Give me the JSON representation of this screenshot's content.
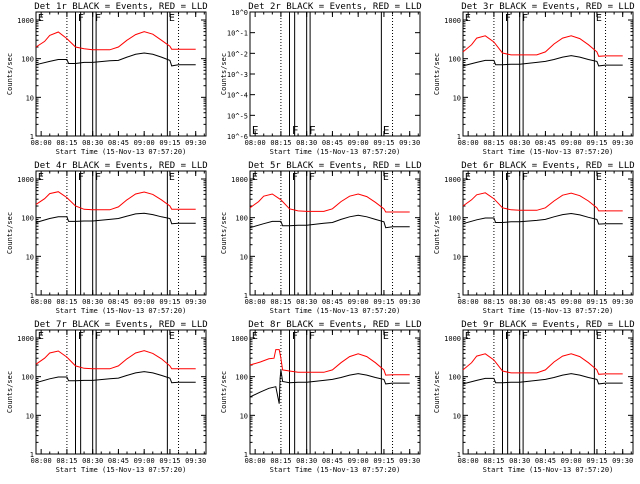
{
  "x_tick_labels": [
    "08:00",
    "08:15",
    "08:30",
    "08:45",
    "09:00",
    "09:15",
    "09:30"
  ],
  "y_tick_labels_log": [
    "1",
    "10",
    "100",
    "1000"
  ],
  "y_tick_labels_empty": [
    "10^-6",
    "10^-5",
    "10^-4",
    "10^-3",
    "10^-2",
    "10^-1",
    "10^0"
  ],
  "ylabel": "Counts/sec",
  "xlabel": "Start Time (15-Nov-13 07:57:20)",
  "colors": {
    "events": "#000000",
    "lld": "#ff0000"
  },
  "chart_data": [
    {
      "id": "det-1r",
      "title": "Det 1r BLACK = Events, RED = LLD",
      "type": "line",
      "empty": false,
      "ylim": [
        1,
        1000
      ],
      "markers": [
        "E",
        "F",
        "F",
        "E"
      ],
      "series": [
        {
          "name": "BLACK = Events",
          "x": [
            "07:57",
            "08:05",
            "08:10",
            "08:15",
            "08:16",
            "08:20",
            "08:25",
            "08:30",
            "08:40",
            "08:45",
            "08:50",
            "08:55",
            "09:00",
            "09:05",
            "09:10",
            "09:15",
            "09:16",
            "09:20",
            "09:25",
            "09:30"
          ],
          "values": [
            70,
            85,
            95,
            95,
            75,
            75,
            80,
            80,
            88,
            90,
            110,
            130,
            140,
            130,
            110,
            90,
            65,
            70,
            70,
            70
          ]
        },
        {
          "name": "RED = LLD",
          "x": [
            "07:57",
            "08:02",
            "08:05",
            "08:10",
            "08:15",
            "08:20",
            "08:25",
            "08:30",
            "08:40",
            "08:45",
            "08:50",
            "08:55",
            "09:00",
            "09:05",
            "09:10",
            "09:15",
            "09:16",
            "09:20",
            "09:25",
            "09:30"
          ],
          "values": [
            200,
            280,
            400,
            490,
            330,
            200,
            180,
            170,
            170,
            200,
            300,
            420,
            500,
            430,
            300,
            210,
            175,
            175,
            175,
            175
          ]
        }
      ]
    },
    {
      "id": "det-2r",
      "title": "Det 2r BLACK = Events, RED = LLD",
      "type": "line",
      "empty": true,
      "markers": [
        "E",
        "F",
        "F",
        "E"
      ],
      "series": []
    },
    {
      "id": "det-3r",
      "title": "Det 3r BLACK = Events, RED = LLD",
      "type": "line",
      "empty": false,
      "ylim": [
        1,
        1000
      ],
      "markers": [
        "E",
        "F",
        "F",
        "E"
      ],
      "series": [
        {
          "name": "BLACK = Events",
          "x": [
            "07:57",
            "08:05",
            "08:10",
            "08:15",
            "08:16",
            "08:20",
            "08:25",
            "08:30",
            "08:40",
            "08:45",
            "08:50",
            "08:55",
            "09:00",
            "09:05",
            "09:10",
            "09:15",
            "09:16",
            "09:20",
            "09:25",
            "09:30"
          ],
          "values": [
            65,
            80,
            90,
            90,
            70,
            70,
            72,
            72,
            80,
            85,
            95,
            110,
            120,
            110,
            95,
            85,
            65,
            68,
            68,
            68
          ]
        },
        {
          "name": "RED = LLD",
          "x": [
            "07:57",
            "08:02",
            "08:05",
            "08:10",
            "08:15",
            "08:20",
            "08:25",
            "08:30",
            "08:40",
            "08:45",
            "08:50",
            "08:55",
            "09:00",
            "09:05",
            "09:10",
            "09:15",
            "09:16",
            "09:20",
            "09:25",
            "09:30"
          ],
          "values": [
            150,
            230,
            340,
            390,
            270,
            140,
            125,
            125,
            125,
            150,
            240,
            340,
            390,
            330,
            230,
            150,
            115,
            118,
            118,
            118
          ]
        }
      ]
    },
    {
      "id": "det-4r",
      "title": "Det 4r BLACK = Events, RED = LLD",
      "type": "line",
      "empty": false,
      "ylim": [
        1,
        1000
      ],
      "markers": [
        "E",
        "F",
        "F",
        "E"
      ],
      "series": [
        {
          "name": "BLACK = Events",
          "x": [
            "07:57",
            "08:05",
            "08:10",
            "08:15",
            "08:16",
            "08:20",
            "08:25",
            "08:30",
            "08:40",
            "08:45",
            "08:50",
            "08:55",
            "09:00",
            "09:05",
            "09:10",
            "09:15",
            "09:16",
            "09:20",
            "09:25",
            "09:30"
          ],
          "values": [
            75,
            95,
            105,
            105,
            80,
            80,
            82,
            82,
            90,
            95,
            110,
            125,
            130,
            120,
            105,
            95,
            70,
            72,
            72,
            72
          ]
        },
        {
          "name": "RED = LLD",
          "x": [
            "07:57",
            "08:02",
            "08:05",
            "08:10",
            "08:15",
            "08:20",
            "08:25",
            "08:30",
            "08:40",
            "08:45",
            "08:50",
            "08:55",
            "09:00",
            "09:05",
            "09:10",
            "09:15",
            "09:16",
            "09:20",
            "09:25",
            "09:30"
          ],
          "values": [
            220,
            310,
            420,
            470,
            330,
            200,
            165,
            160,
            160,
            190,
            290,
            410,
            460,
            400,
            290,
            200,
            165,
            165,
            165,
            165
          ]
        }
      ]
    },
    {
      "id": "det-5r",
      "title": "Det 5r BLACK = Events, RED = LLD",
      "type": "line",
      "empty": false,
      "ylim": [
        1,
        1000
      ],
      "markers": [
        "E",
        "F",
        "F",
        "E"
      ],
      "series": [
        {
          "name": "BLACK = Events",
          "x": [
            "07:57",
            "08:05",
            "08:10",
            "08:15",
            "08:16",
            "08:20",
            "08:25",
            "08:30",
            "08:40",
            "08:45",
            "08:50",
            "08:55",
            "09:00",
            "09:05",
            "09:10",
            "09:15",
            "09:16",
            "09:20",
            "09:25",
            "09:30"
          ],
          "values": [
            55,
            70,
            80,
            80,
            62,
            62,
            64,
            64,
            72,
            75,
            90,
            105,
            115,
            105,
            90,
            78,
            55,
            58,
            58,
            58
          ]
        },
        {
          "name": "RED = LLD",
          "x": [
            "07:57",
            "08:02",
            "08:05",
            "08:10",
            "08:15",
            "08:20",
            "08:25",
            "08:30",
            "08:40",
            "08:45",
            "08:50",
            "08:55",
            "09:00",
            "09:05",
            "09:10",
            "09:15",
            "09:16",
            "09:20",
            "09:25",
            "09:30"
          ],
          "values": [
            180,
            260,
            360,
            410,
            290,
            170,
            150,
            145,
            145,
            170,
            260,
            360,
            410,
            350,
            250,
            170,
            140,
            140,
            140,
            140
          ]
        }
      ]
    },
    {
      "id": "det-6r",
      "title": "Det 6r BLACK = Events, RED = LLD",
      "type": "line",
      "empty": false,
      "ylim": [
        1,
        1000
      ],
      "markers": [
        "E",
        "F",
        "F",
        "E"
      ],
      "series": [
        {
          "name": "BLACK = Events",
          "x": [
            "07:57",
            "08:05",
            "08:10",
            "08:15",
            "08:16",
            "08:20",
            "08:25",
            "08:30",
            "08:40",
            "08:45",
            "08:50",
            "08:55",
            "09:00",
            "09:05",
            "09:10",
            "09:15",
            "09:16",
            "09:20",
            "09:25",
            "09:30"
          ],
          "values": [
            70,
            88,
            98,
            98,
            75,
            75,
            78,
            78,
            85,
            90,
            105,
            120,
            128,
            118,
            102,
            90,
            68,
            70,
            70,
            70
          ]
        },
        {
          "name": "RED = LLD",
          "x": [
            "07:57",
            "08:02",
            "08:05",
            "08:10",
            "08:15",
            "08:20",
            "08:25",
            "08:30",
            "08:40",
            "08:45",
            "08:50",
            "08:55",
            "09:00",
            "09:05",
            "09:10",
            "09:15",
            "09:16",
            "09:20",
            "09:25",
            "09:30"
          ],
          "values": [
            200,
            290,
            390,
            440,
            310,
            180,
            160,
            155,
            155,
            180,
            270,
            380,
            430,
            370,
            270,
            180,
            150,
            150,
            150,
            150
          ]
        }
      ]
    },
    {
      "id": "det-7r",
      "title": "Det 7r BLACK = Events, RED = LLD",
      "type": "line",
      "empty": false,
      "ylim": [
        1,
        1000
      ],
      "markers": [
        "E",
        "F",
        "F",
        "E"
      ],
      "series": [
        {
          "name": "BLACK = Events",
          "x": [
            "07:57",
            "08:05",
            "08:10",
            "08:15",
            "08:16",
            "08:20",
            "08:25",
            "08:30",
            "08:40",
            "08:45",
            "08:50",
            "08:55",
            "09:00",
            "09:05",
            "09:10",
            "09:15",
            "09:16",
            "09:20",
            "09:25",
            "09:30"
          ],
          "values": [
            70,
            88,
            98,
            98,
            78,
            78,
            80,
            80,
            88,
            92,
            108,
            125,
            135,
            125,
            108,
            92,
            70,
            72,
            72,
            72
          ]
        },
        {
          "name": "RED = LLD",
          "x": [
            "07:57",
            "08:02",
            "08:05",
            "08:10",
            "08:15",
            "08:20",
            "08:25",
            "08:30",
            "08:40",
            "08:45",
            "08:50",
            "08:55",
            "09:00",
            "09:05",
            "09:10",
            "09:15",
            "09:16",
            "09:20",
            "09:25",
            "09:30"
          ],
          "values": [
            210,
            300,
            410,
            460,
            320,
            190,
            165,
            160,
            160,
            190,
            290,
            410,
            470,
            400,
            290,
            190,
            160,
            160,
            160,
            160
          ]
        }
      ]
    },
    {
      "id": "det-8r",
      "title": "Det 8r BLACK = Events, RED = LLD",
      "type": "line",
      "empty": false,
      "ylim": [
        1,
        1000
      ],
      "markers": [
        "E",
        "F",
        "F",
        "E"
      ],
      "series": [
        {
          "name": "BLACK = Events",
          "x": [
            "07:57",
            "08:03",
            "08:08",
            "08:12",
            "08:14",
            "08:14.5",
            "08:15",
            "08:16",
            "08:20",
            "08:25",
            "08:30",
            "08:40",
            "08:45",
            "08:50",
            "08:55",
            "09:00",
            "09:05",
            "09:10",
            "09:15",
            "09:16",
            "09:20",
            "09:25",
            "09:30"
          ],
          "values": [
            30,
            40,
            50,
            55,
            20,
            90,
            150,
            75,
            70,
            72,
            72,
            80,
            85,
            95,
            110,
            120,
            110,
            95,
            85,
            65,
            68,
            68,
            68
          ]
        },
        {
          "name": "RED = LLD",
          "x": [
            "07:57",
            "08:03",
            "08:08",
            "08:11",
            "08:12",
            "08:14",
            "08:15",
            "08:16",
            "08:20",
            "08:25",
            "08:30",
            "08:40",
            "08:45",
            "08:50",
            "08:55",
            "09:00",
            "09:05",
            "09:10",
            "09:15",
            "09:16",
            "09:20",
            "09:25",
            "09:30"
          ],
          "values": [
            200,
            240,
            290,
            300,
            500,
            500,
            300,
            150,
            140,
            130,
            130,
            130,
            150,
            230,
            330,
            390,
            330,
            230,
            150,
            110,
            112,
            112,
            112
          ]
        }
      ]
    },
    {
      "id": "det-9r",
      "title": "Det 9r BLACK = Events, RED = LLD",
      "type": "line",
      "empty": false,
      "ylim": [
        1,
        1000
      ],
      "markers": [
        "E",
        "F",
        "F",
        "E"
      ],
      "series": [
        {
          "name": "BLACK = Events",
          "x": [
            "07:57",
            "08:05",
            "08:10",
            "08:15",
            "08:16",
            "08:20",
            "08:25",
            "08:30",
            "08:40",
            "08:45",
            "08:50",
            "08:55",
            "09:00",
            "09:05",
            "09:10",
            "09:15",
            "09:16",
            "09:20",
            "09:25",
            "09:30"
          ],
          "values": [
            65,
            80,
            90,
            90,
            70,
            70,
            72,
            72,
            80,
            85,
            95,
            110,
            120,
            110,
            95,
            85,
            65,
            68,
            68,
            68
          ]
        },
        {
          "name": "RED = LLD",
          "x": [
            "07:57",
            "08:02",
            "08:05",
            "08:10",
            "08:15",
            "08:20",
            "08:25",
            "08:30",
            "08:40",
            "08:45",
            "08:50",
            "08:55",
            "09:00",
            "09:05",
            "09:10",
            "09:15",
            "09:16",
            "09:20",
            "09:25",
            "09:30"
          ],
          "values": [
            150,
            230,
            340,
            390,
            270,
            140,
            125,
            125,
            125,
            150,
            240,
            340,
            390,
            330,
            230,
            150,
            115,
            118,
            118,
            118
          ]
        }
      ]
    }
  ]
}
